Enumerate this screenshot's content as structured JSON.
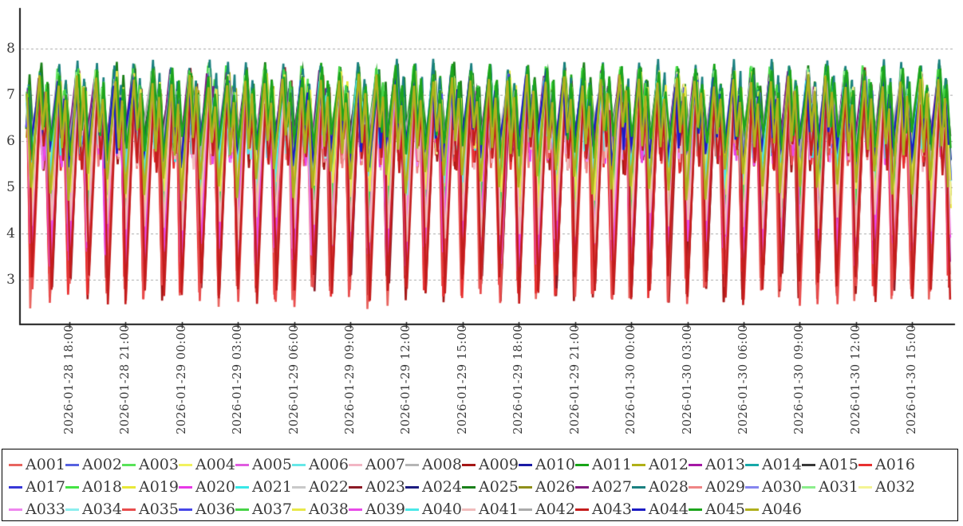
{
  "chart_data": {
    "type": "line",
    "title": "",
    "xlabel": "",
    "ylabel": "",
    "x_axis": {
      "tick_labels": [
        "2026-01-28 18:00",
        "2026-01-28 21:00",
        "2026-01-29 00:00",
        "2026-01-29 03:00",
        "2026-01-29 06:00",
        "2026-01-29 09:00",
        "2026-01-29 12:00",
        "2026-01-29 15:00",
        "2026-01-29 18:00",
        "2026-01-29 21:00",
        "2026-01-30 00:00",
        "2026-01-30 03:00",
        "2026-01-30 06:00",
        "2026-01-30 09:00",
        "2026-01-30 12:00",
        "2026-01-30 15:00"
      ],
      "tick_interval_hours": 3,
      "range_hours": [
        -1.8,
        46.8
      ],
      "label_rotation_deg": 90
    },
    "y_axis": {
      "tick_labels": [
        "3",
        "4",
        "5",
        "6",
        "7",
        "8"
      ],
      "tick_values": [
        3,
        4,
        5,
        6,
        7,
        8
      ],
      "range": [
        2.03,
        8.85
      ],
      "grid": "dashed",
      "grid_color": "#a9a9a9"
    },
    "legend": {
      "position": "bottom",
      "border_color": "#000000",
      "items_per_row": [
        16,
        16,
        14
      ]
    },
    "pattern": {
      "description": "each series oscillates hourly: sharp deep trough, fast rise to peak, shallow mid-cycle dip, secondary peak, steep fall",
      "period_hours": 1,
      "render_seed": 1234
    },
    "series": [
      {
        "name": "A001",
        "color": "#e8645f",
        "peak": 7.22,
        "trough": 2.35
      },
      {
        "name": "A002",
        "color": "#5661e0",
        "peak": 7.5,
        "trough": 5.0
      },
      {
        "name": "A003",
        "color": "#59e359",
        "peak": 7.64,
        "trough": 4.15
      },
      {
        "name": "A004",
        "color": "#f2f25e",
        "peak": 7.58,
        "trough": 4.3
      },
      {
        "name": "A005",
        "color": "#e05ce0",
        "peak": 7.3,
        "trough": 3.45
      },
      {
        "name": "A006",
        "color": "#66e8e8",
        "peak": 7.42,
        "trough": 4.7
      },
      {
        "name": "A007",
        "color": "#f2b6c4",
        "peak": 7.2,
        "trough": 3.6
      },
      {
        "name": "A008",
        "color": "#b5b5b5",
        "peak": 7.4,
        "trough": 5.5
      },
      {
        "name": "A009",
        "color": "#a51716",
        "peak": 7.1,
        "trough": 2.5
      },
      {
        "name": "A010",
        "color": "#1a1aa5",
        "peak": 7.44,
        "trough": 5.3
      },
      {
        "name": "A011",
        "color": "#17a517",
        "peak": 7.7,
        "trough": 5.45
      },
      {
        "name": "A012",
        "color": "#b0b017",
        "peak": 7.5,
        "trough": 4.6
      },
      {
        "name": "A013",
        "color": "#a517a5",
        "peak": 7.5,
        "trough": 3.0
      },
      {
        "name": "A014",
        "color": "#17a8a8",
        "peak": 7.45,
        "trough": 4.9
      },
      {
        "name": "A015",
        "color": "#383838",
        "peak": 7.42,
        "trough": 5.6
      },
      {
        "name": "A016",
        "color": "#e83030",
        "peak": 7.12,
        "trough": 2.55
      },
      {
        "name": "A017",
        "color": "#3838d8",
        "peak": 7.48,
        "trough": 5.15
      },
      {
        "name": "A018",
        "color": "#44e344",
        "peak": 7.66,
        "trough": 4.35
      },
      {
        "name": "A019",
        "color": "#e8e838",
        "peak": 7.56,
        "trough": 4.45
      },
      {
        "name": "A020",
        "color": "#e838e8",
        "peak": 7.28,
        "trough": 3.15
      },
      {
        "name": "A021",
        "color": "#38e8e8",
        "peak": 7.4,
        "trough": 4.8
      },
      {
        "name": "A022",
        "color": "#c9c9c9",
        "peak": 7.39,
        "trough": 5.55
      },
      {
        "name": "A023",
        "color": "#8c1a25",
        "peak": 7.6,
        "trough": 2.7
      },
      {
        "name": "A024",
        "color": "#1c1c80",
        "peak": 7.45,
        "trough": 5.35
      },
      {
        "name": "A025",
        "color": "#1a801a",
        "peak": 7.72,
        "trough": 5.5
      },
      {
        "name": "A026",
        "color": "#8f8f1a",
        "peak": 7.48,
        "trough": 4.65
      },
      {
        "name": "A027",
        "color": "#801a80",
        "peak": 7.58,
        "trough": 5.3
      },
      {
        "name": "A028",
        "color": "#1a8080",
        "peak": 7.78,
        "trough": 4.95
      },
      {
        "name": "A029",
        "color": "#ef8585",
        "peak": 7.16,
        "trough": 3.9
      },
      {
        "name": "A030",
        "color": "#8585ef",
        "peak": 7.44,
        "trough": 5.2
      },
      {
        "name": "A031",
        "color": "#8cee8c",
        "peak": 7.6,
        "trough": 4.0
      },
      {
        "name": "A032",
        "color": "#f4f494",
        "peak": 7.52,
        "trough": 4.55
      },
      {
        "name": "A033",
        "color": "#ee86ee",
        "peak": 7.24,
        "trough": 3.35
      },
      {
        "name": "A034",
        "color": "#8ceeee",
        "peak": 7.38,
        "trough": 4.75
      },
      {
        "name": "A035",
        "color": "#e84d4d",
        "peak": 7.2,
        "trough": 2.4
      },
      {
        "name": "A036",
        "color": "#4747e8",
        "peak": 7.46,
        "trough": 5.1
      },
      {
        "name": "A037",
        "color": "#47d347",
        "peak": 7.62,
        "trough": 4.25
      },
      {
        "name": "A038",
        "color": "#e8e84a",
        "peak": 7.54,
        "trough": 4.5
      },
      {
        "name": "A039",
        "color": "#e84ae8",
        "peak": 7.26,
        "trough": 3.25
      },
      {
        "name": "A040",
        "color": "#4ae8e8",
        "peak": 7.36,
        "trough": 4.85
      },
      {
        "name": "A041",
        "color": "#f0bcbc",
        "peak": 7.18,
        "trough": 3.75
      },
      {
        "name": "A042",
        "color": "#ababab",
        "peak": 7.38,
        "trough": 5.6
      },
      {
        "name": "A043",
        "color": "#c41d1d",
        "peak": 7.08,
        "trough": 2.45
      },
      {
        "name": "A044",
        "color": "#1d1dc4",
        "peak": 7.43,
        "trough": 5.4
      },
      {
        "name": "A045",
        "color": "#1da51d",
        "peak": 7.68,
        "trough": 5.55
      },
      {
        "name": "A046",
        "color": "#b0b01d",
        "peak": 7.46,
        "trough": 4.7
      }
    ]
  }
}
